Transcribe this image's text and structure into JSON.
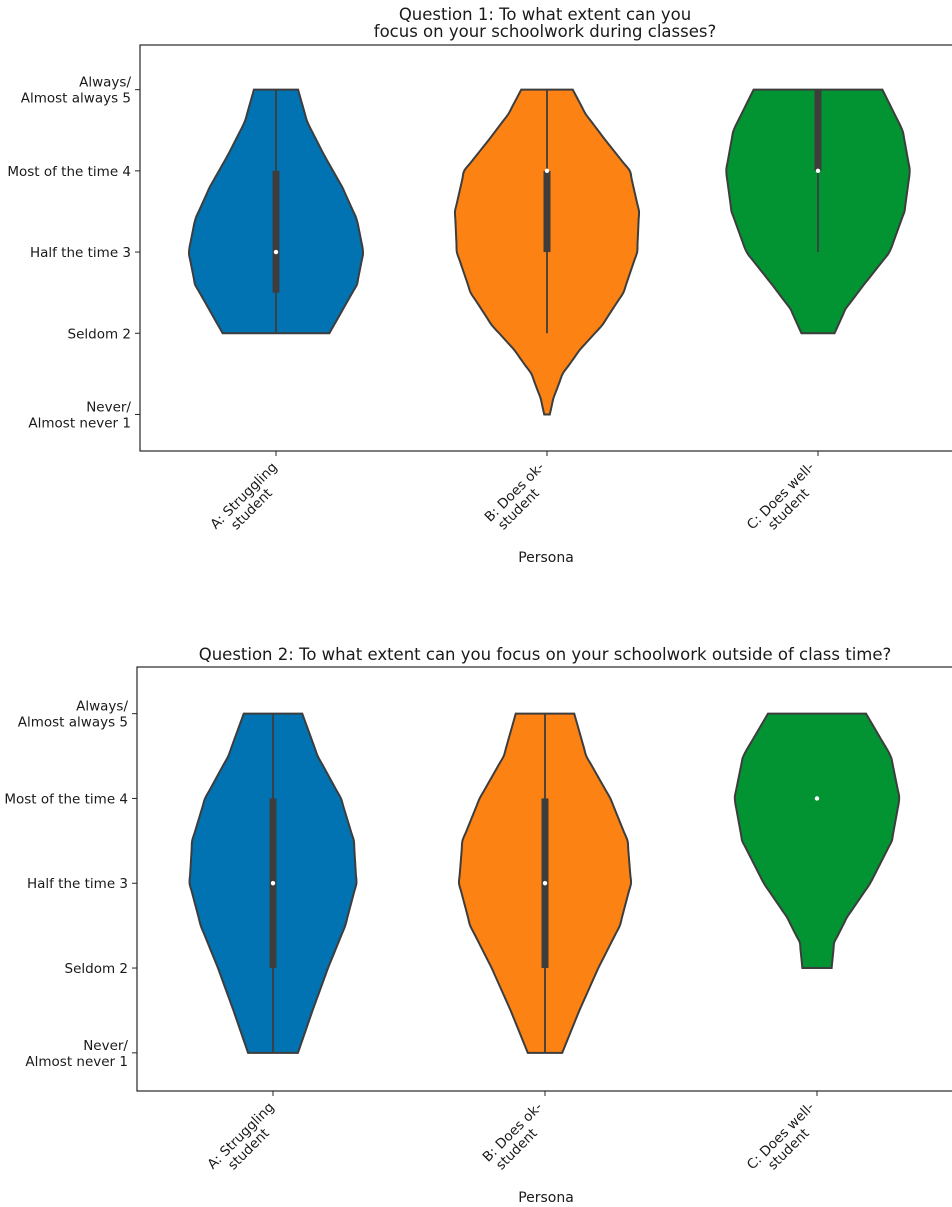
{
  "colors": {
    "A: Struggling student": "#0173b2",
    "B: Does ok-student": "#fc8214",
    "C: Does well-student": "#029433",
    "edge": "#3d3d3d",
    "box": "#3d3d3d",
    "median": "#ffffff"
  },
  "chart_data": [
    {
      "type": "violin",
      "title_lines": [
        "Question 1: To what extent can you",
        "focus on your schoolwork during classes?"
      ],
      "xlabel": "Persona",
      "ylabel": "",
      "ylim": [
        0.55,
        5.55
      ],
      "y_ticks": [
        {
          "value": 5,
          "lines": [
            "Always/",
            "Almost always 5"
          ]
        },
        {
          "value": 4,
          "lines": [
            "Most of the time 4"
          ]
        },
        {
          "value": 3,
          "lines": [
            "Half the time 3"
          ]
        },
        {
          "value": 2,
          "lines": [
            "Seldom 2"
          ]
        },
        {
          "value": 1,
          "lines": [
            "Never/",
            "Almost never 1"
          ]
        }
      ],
      "categories": [
        {
          "name": "A: Struggling student",
          "lines": [
            "A: Struggling",
            "student"
          ]
        },
        {
          "name": "B: Does ok-student",
          "lines": [
            "B: Does ok-",
            "student"
          ]
        },
        {
          "name": "C: Does well-student",
          "lines": [
            "C: Does well-",
            "student"
          ]
        }
      ],
      "series": [
        {
          "category": "A: Struggling student",
          "min": 2,
          "q1": 2.5,
          "median": 3,
          "q3": 4,
          "max": 5,
          "density": [
            [
              2,
              0.58
            ],
            [
              2.3,
              0.73
            ],
            [
              2.6,
              0.88
            ],
            [
              3,
              0.95
            ],
            [
              3.4,
              0.88
            ],
            [
              3.8,
              0.72
            ],
            [
              4.2,
              0.52
            ],
            [
              4.6,
              0.34
            ],
            [
              5,
              0.24
            ]
          ]
        },
        {
          "category": "B: Does ok-student",
          "min": 2,
          "q1": 3,
          "median": 4,
          "q3": 4,
          "max": 5,
          "tail_min": 1,
          "density": [
            [
              1,
              0.03
            ],
            [
              1.2,
              0.07
            ],
            [
              1.5,
              0.17
            ],
            [
              1.8,
              0.36
            ],
            [
              2.1,
              0.6
            ],
            [
              2.5,
              0.83
            ],
            [
              3,
              0.98
            ],
            [
              3.5,
              1.0
            ],
            [
              4,
              0.9
            ],
            [
              4.4,
              0.62
            ],
            [
              4.7,
              0.42
            ],
            [
              5,
              0.28
            ]
          ]
        },
        {
          "category": "C: Does well-student",
          "min": 3,
          "q1": 4,
          "median": 4,
          "q3": 5,
          "max": 5,
          "density": [
            [
              2,
              0.18
            ],
            [
              2.3,
              0.3
            ],
            [
              2.6,
              0.5
            ],
            [
              3,
              0.78
            ],
            [
              3.5,
              0.94
            ],
            [
              4,
              1.0
            ],
            [
              4.5,
              0.92
            ],
            [
              5,
              0.7
            ]
          ]
        }
      ]
    },
    {
      "type": "violin",
      "title_lines": [
        "Question 2: To what extent can you focus on your schoolwork outside of class time?"
      ],
      "xlabel": "Persona",
      "ylabel": "",
      "ylim": [
        0.55,
        5.55
      ],
      "y_ticks": [
        {
          "value": 5,
          "lines": [
            "Always/",
            "Almost always 5"
          ]
        },
        {
          "value": 4,
          "lines": [
            "Most of the time 4"
          ]
        },
        {
          "value": 3,
          "lines": [
            "Half the time 3"
          ]
        },
        {
          "value": 2,
          "lines": [
            "Seldom 2"
          ]
        },
        {
          "value": 1,
          "lines": [
            "Never/",
            "Almost never 1"
          ]
        }
      ],
      "categories": [
        {
          "name": "A: Struggling student",
          "lines": [
            "A: Struggling",
            "student"
          ]
        },
        {
          "name": "B: Does ok-student",
          "lines": [
            "B: Does ok-",
            "student"
          ]
        },
        {
          "name": "C: Does well-student",
          "lines": [
            "C: Does well-",
            "student"
          ]
        }
      ],
      "series": [
        {
          "category": "A: Struggling student",
          "min": 1,
          "q1": 2,
          "median": 3,
          "q3": 4,
          "max": 5,
          "density": [
            [
              1,
              0.29
            ],
            [
              1.5,
              0.46
            ],
            [
              2,
              0.64
            ],
            [
              2.5,
              0.84
            ],
            [
              3,
              0.97
            ],
            [
              3.5,
              0.94
            ],
            [
              4,
              0.79
            ],
            [
              4.5,
              0.52
            ],
            [
              5,
              0.34
            ]
          ]
        },
        {
          "category": "B: Does ok-student",
          "min": 1,
          "q1": 2,
          "median": 3,
          "q3": 4,
          "max": 5,
          "density": [
            [
              1,
              0.2
            ],
            [
              1.5,
              0.4
            ],
            [
              2,
              0.62
            ],
            [
              2.5,
              0.87
            ],
            [
              3,
              1.0
            ],
            [
              3.5,
              0.96
            ],
            [
              4,
              0.76
            ],
            [
              4.5,
              0.48
            ],
            [
              5,
              0.34
            ]
          ]
        },
        {
          "category": "C: Does well-student",
          "min": 4,
          "q1": 4,
          "median": 4,
          "q3": 4,
          "max": 4,
          "density": [
            [
              2,
              0.17
            ],
            [
              2.3,
              0.2
            ],
            [
              2.6,
              0.35
            ],
            [
              3,
              0.62
            ],
            [
              3.5,
              0.87
            ],
            [
              4,
              0.96
            ],
            [
              4.5,
              0.86
            ],
            [
              5,
              0.57
            ]
          ]
        }
      ]
    }
  ]
}
